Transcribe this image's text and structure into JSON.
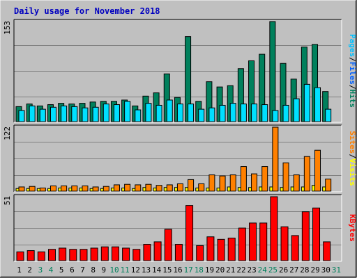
{
  "title": "Daily usage for November 2018",
  "colors": {
    "background": "#C0C0C0",
    "plot_area": "#C0C0C0",
    "grid": "#808080",
    "title": "#0000C0",
    "hits": "#00805C",
    "files": "#00E0FF",
    "pages": "#00C0FF",
    "visits": "#FFFF00",
    "sites": "#FF8000",
    "kbytes": "#FF0000",
    "weekend_label": "#00805C",
    "weekday_label": "#000000",
    "divider": "#404040"
  },
  "chart_data": [
    {
      "type": "bar",
      "panel": "hits-files-pages",
      "ymax_label": "153",
      "ylim": [
        0,
        153
      ],
      "legend": [
        {
          "label": "Pages",
          "color": "#00C0FF"
        },
        {
          "label": "Files",
          "color": "#0060FF"
        },
        {
          "label": "Hits",
          "color": "#00805C"
        }
      ],
      "legend_separator": "/",
      "categories": [
        "1",
        "2",
        "3",
        "4",
        "5",
        "6",
        "7",
        "8",
        "9",
        "10",
        "11",
        "12",
        "13",
        "14",
        "15",
        "16",
        "17",
        "18",
        "19",
        "20",
        "21",
        "22",
        "23",
        "24",
        "25",
        "26",
        "27",
        "28",
        "29",
        "30",
        "31"
      ],
      "series": [
        {
          "name": "Hits",
          "color": "#00805C",
          "values": [
            23,
            27,
            24,
            26,
            28,
            27,
            28,
            30,
            31,
            31,
            33,
            24,
            39,
            44,
            73,
            37,
            130,
            31,
            61,
            53,
            55,
            81,
            93,
            103,
            153,
            89,
            65,
            114,
            118,
            46,
            0
          ]
        },
        {
          "name": "Files",
          "color": "#00E0FF",
          "values": [
            17,
            24,
            19,
            22,
            24,
            23,
            21,
            22,
            27,
            26,
            31,
            18,
            28,
            25,
            33,
            27,
            27,
            19,
            21,
            25,
            28,
            27,
            27,
            26,
            17,
            25,
            35,
            57,
            52,
            19,
            0
          ]
        }
      ]
    },
    {
      "type": "bar",
      "panel": "visits-sites",
      "ymax_label": "122",
      "ylim": [
        0,
        122
      ],
      "legend": [
        {
          "label": "Sites",
          "color": "#FF8000"
        },
        {
          "label": "Visits",
          "color": "#FFFF00"
        }
      ],
      "legend_separator": "/",
      "categories": [
        "1",
        "2",
        "3",
        "4",
        "5",
        "6",
        "7",
        "8",
        "9",
        "10",
        "11",
        "12",
        "13",
        "14",
        "15",
        "16",
        "17",
        "18",
        "19",
        "20",
        "21",
        "22",
        "23",
        "24",
        "25",
        "26",
        "27",
        "28",
        "29",
        "30",
        "31"
      ],
      "series": [
        {
          "name": "Visits",
          "color": "#FFFF00",
          "values": [
            5,
            5,
            5,
            5,
            6,
            6,
            6,
            5,
            5,
            6,
            6,
            5,
            7,
            6,
            7,
            7,
            7,
            6,
            6,
            6,
            8,
            7,
            7,
            8,
            8,
            7,
            8,
            8,
            11,
            8,
            0
          ]
        },
        {
          "name": "Sites",
          "color": "#FF8000",
          "values": [
            8,
            9,
            6,
            10,
            10,
            10,
            10,
            8,
            9,
            12,
            13,
            12,
            13,
            11,
            12,
            14,
            22,
            14,
            31,
            29,
            31,
            47,
            33,
            47,
            122,
            54,
            31,
            66,
            78,
            23,
            0
          ]
        }
      ]
    },
    {
      "type": "bar",
      "panel": "kbytes",
      "ymax_label": "51",
      "ylim": [
        0,
        51
      ],
      "legend": [
        {
          "label": "KBytes",
          "color": "#FF0000"
        }
      ],
      "categories": [
        "1",
        "2",
        "3",
        "4",
        "5",
        "6",
        "7",
        "8",
        "9",
        "10",
        "11",
        "12",
        "13",
        "14",
        "15",
        "16",
        "17",
        "18",
        "19",
        "20",
        "21",
        "22",
        "23",
        "24",
        "25",
        "26",
        "27",
        "28",
        "29",
        "30",
        "31"
      ],
      "series": [
        {
          "name": "KBytes",
          "color": "#FF0000",
          "values": [
            7,
            8,
            7,
            9,
            10,
            9,
            9,
            10,
            11,
            11,
            10,
            9,
            13,
            15,
            25,
            13,
            44,
            12,
            19,
            17,
            18,
            26,
            30,
            30,
            51,
            27,
            20,
            39,
            42,
            15,
            0
          ]
        }
      ]
    }
  ],
  "x_axis": {
    "labels": [
      "1",
      "2",
      "3",
      "4",
      "5",
      "6",
      "7",
      "8",
      "9",
      "10",
      "11",
      "12",
      "13",
      "14",
      "15",
      "16",
      "17",
      "18",
      "19",
      "20",
      "21",
      "22",
      "23",
      "24",
      "25",
      "26",
      "27",
      "28",
      "29",
      "30",
      "31"
    ],
    "weekend_days": [
      "3",
      "4",
      "10",
      "11",
      "17",
      "18",
      "24",
      "25",
      "31"
    ]
  }
}
